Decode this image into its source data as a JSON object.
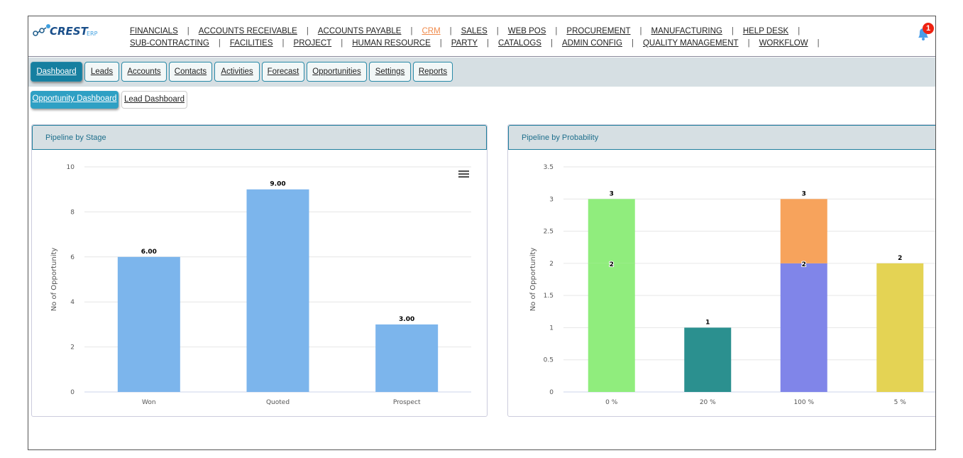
{
  "brand": {
    "logo_text": "CREST",
    "logo_sub": "ERP"
  },
  "menu": {
    "row1": [
      "FINANCIALS",
      "ACCOUNTS RECEIVABLE",
      "ACCOUNTS PAYABLE",
      "CRM",
      "SALES",
      "WEB POS",
      "PROCUREMENT",
      "MANUFACTURING",
      "HELP DESK"
    ],
    "row2": [
      "SUB-CONTRACTING",
      "FACILITIES",
      "PROJECT",
      "HUMAN RESOURCE",
      "PARTY",
      "CATALOGS",
      "ADMIN CONFIG",
      "QUALITY MANAGEMENT",
      "WORKFLOW"
    ],
    "active": "CRM"
  },
  "notifications": {
    "count": "1"
  },
  "tabs": [
    "Dashboard",
    "Leads",
    "Accounts",
    "Contacts",
    "Activities",
    "Forecast",
    "Opportunities",
    "Settings",
    "Reports"
  ],
  "subtabs": [
    "Opportunity Dashboard",
    "Lead Dashboard"
  ],
  "colors": {
    "accent": "#167fa0",
    "bar": "#7cb5ec"
  },
  "chart_data": [
    {
      "type": "bar",
      "title": "Pipeline by Stage",
      "ylabel": "No of Opportunity",
      "xlabel": "",
      "ylim": [
        0,
        10
      ],
      "yticks": [
        "0",
        "2",
        "4",
        "6",
        "8",
        "10"
      ],
      "categories": [
        "Won",
        "Quoted",
        "Prospect"
      ],
      "values": [
        6,
        9,
        3
      ],
      "labels": [
        "6.00",
        "9.00",
        "3.00"
      ]
    },
    {
      "type": "bar",
      "stacked": true,
      "title": "Pipeline by Probability",
      "ylabel": "No of Opportunity",
      "xlabel": "",
      "ylim": [
        0,
        3.5
      ],
      "yticks": [
        "0",
        "0.5",
        "1",
        "1.5",
        "2",
        "2.5",
        "3",
        "3.5"
      ],
      "categories": [
        "0 %",
        "20 %",
        "100 %",
        "5 %"
      ],
      "segments": [
        [
          {
            "value": 2,
            "color": "#90ed7d",
            "label": "2"
          },
          {
            "value": 1,
            "color": "#90ed7d",
            "label": "3"
          }
        ],
        [
          {
            "value": 1,
            "color": "#2b908f",
            "label": "1"
          }
        ],
        [
          {
            "value": 2,
            "color": "#8085e9",
            "label": "2"
          },
          {
            "value": 1,
            "color": "#f7a35c",
            "label": "3"
          }
        ],
        [
          {
            "value": 2,
            "color": "#e4d354",
            "label": "2"
          }
        ]
      ]
    }
  ]
}
